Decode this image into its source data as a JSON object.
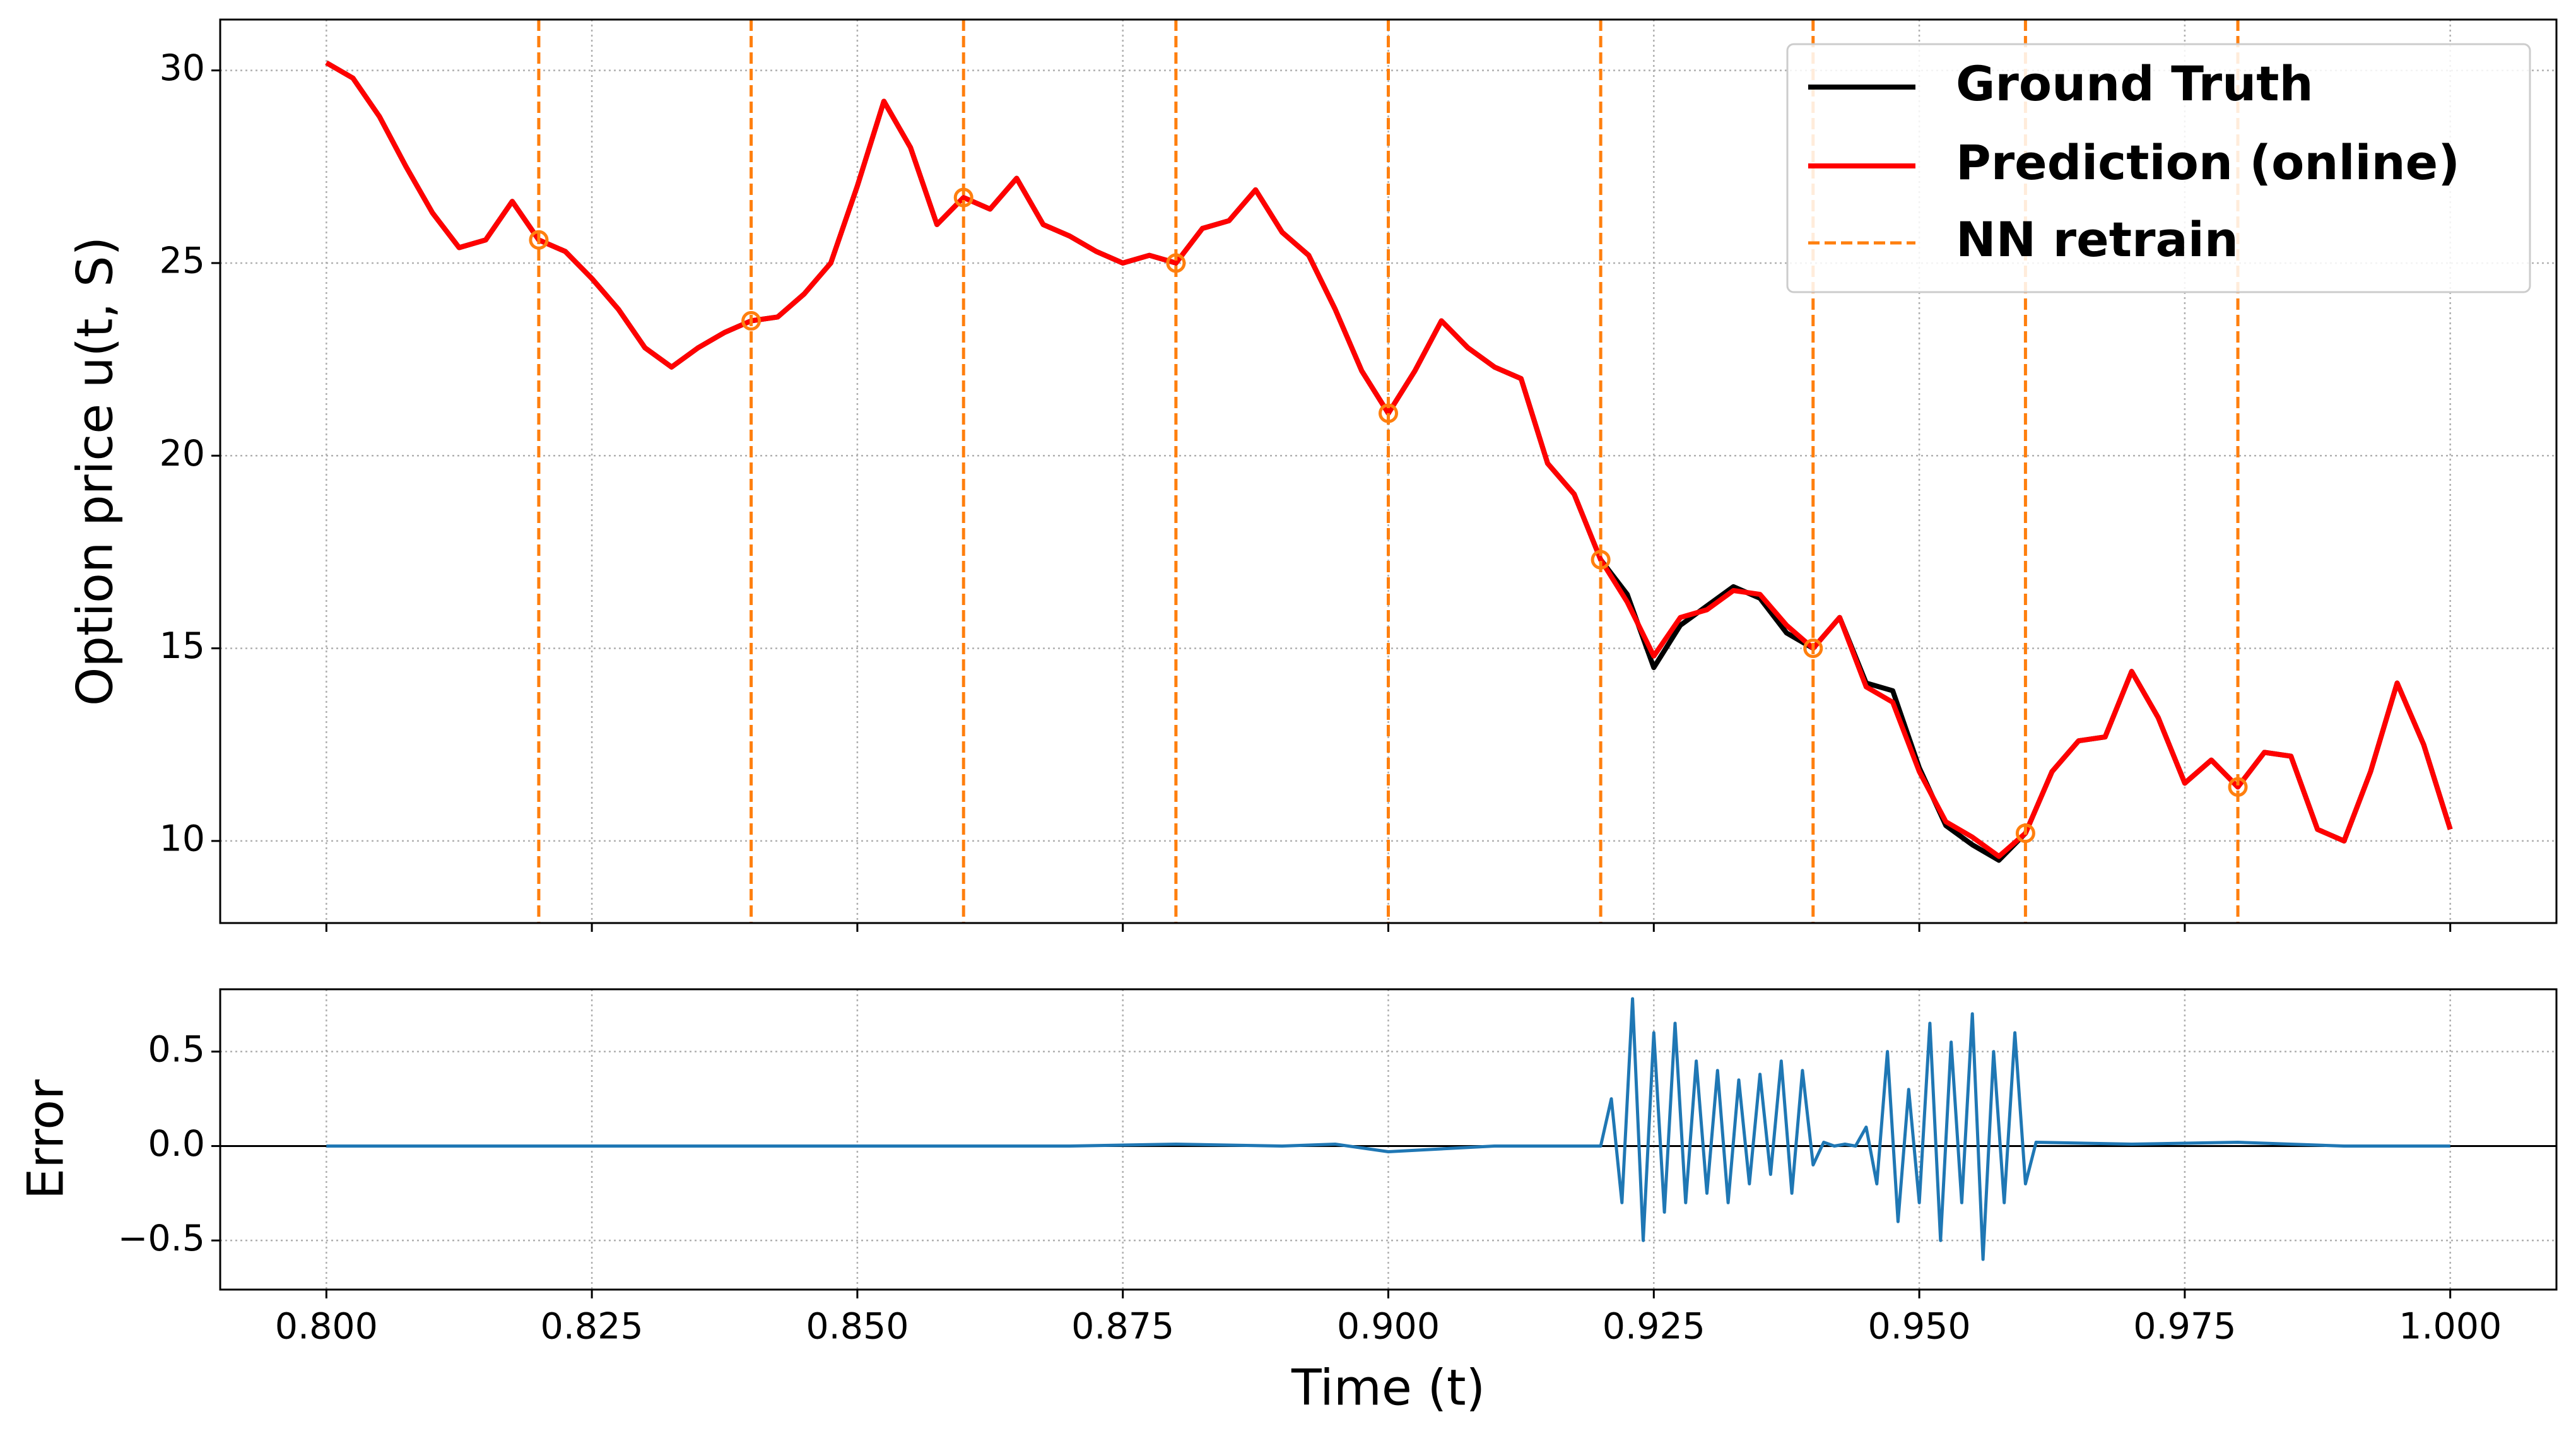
{
  "chart_data": [
    {
      "type": "line",
      "ylabel": "Option price  u(t, S)",
      "xlim": [
        0.79,
        1.01
      ],
      "ylim": [
        7.87,
        31.32
      ],
      "xticks": [
        0.8,
        0.825,
        0.85,
        0.875,
        0.9,
        0.925,
        0.95,
        0.975,
        1.0
      ],
      "yticks": [
        10,
        15,
        20,
        25,
        30
      ],
      "grid": true,
      "legend": "upper right",
      "x": [
        0.8,
        0.8025,
        0.805,
        0.8075,
        0.81,
        0.8125,
        0.815,
        0.8175,
        0.82,
        0.8225,
        0.825,
        0.8275,
        0.83,
        0.8325,
        0.835,
        0.8375,
        0.84,
        0.8425,
        0.845,
        0.8475,
        0.85,
        0.8525,
        0.855,
        0.8575,
        0.86,
        0.8625,
        0.865,
        0.8675,
        0.87,
        0.8725,
        0.875,
        0.8775,
        0.88,
        0.8825,
        0.885,
        0.8875,
        0.89,
        0.8925,
        0.895,
        0.8975,
        0.9,
        0.9025,
        0.905,
        0.9075,
        0.91,
        0.9125,
        0.915,
        0.9175,
        0.92,
        0.9225,
        0.925,
        0.9275,
        0.93,
        0.9325,
        0.935,
        0.9375,
        0.94,
        0.9425,
        0.945,
        0.9475,
        0.95,
        0.9525,
        0.955,
        0.9575,
        0.96,
        0.9625,
        0.965,
        0.9675,
        0.97,
        0.9725,
        0.975,
        0.9775,
        0.98,
        0.9825,
        0.985,
        0.9875,
        0.99,
        0.9925,
        0.995,
        0.9975,
        1.0
      ],
      "series": [
        {
          "name": "Ground Truth",
          "color": "#000000",
          "values": [
            30.2,
            29.8,
            28.8,
            27.5,
            26.3,
            25.4,
            25.6,
            26.6,
            25.6,
            25.3,
            24.6,
            23.8,
            22.8,
            22.3,
            22.8,
            23.2,
            23.5,
            23.6,
            24.2,
            25.0,
            27.0,
            29.2,
            28.0,
            26.0,
            26.7,
            26.4,
            27.2,
            26.0,
            25.7,
            25.3,
            25.0,
            25.2,
            25.0,
            25.9,
            26.1,
            26.9,
            25.8,
            25.2,
            23.8,
            22.2,
            21.1,
            22.2,
            23.5,
            22.8,
            22.3,
            22.0,
            19.8,
            19.0,
            17.3,
            16.4,
            14.5,
            15.6,
            16.1,
            16.6,
            16.3,
            15.4,
            15.0,
            15.8,
            14.1,
            13.9,
            11.9,
            10.4,
            9.9,
            9.5,
            10.2,
            11.8,
            12.6,
            12.7,
            14.4,
            13.2,
            11.5,
            12.1,
            11.4,
            12.3,
            12.2,
            10.3,
            10.0,
            11.8,
            14.1,
            12.5,
            10.3
          ]
        },
        {
          "name": "Prediction (online)",
          "color": "#ff0000",
          "values": [
            30.2,
            29.8,
            28.8,
            27.5,
            26.3,
            25.4,
            25.6,
            26.6,
            25.6,
            25.3,
            24.6,
            23.8,
            22.8,
            22.3,
            22.8,
            23.2,
            23.5,
            23.6,
            24.2,
            25.0,
            27.0,
            29.2,
            28.0,
            26.0,
            26.7,
            26.4,
            27.2,
            26.0,
            25.7,
            25.3,
            25.0,
            25.2,
            25.0,
            25.9,
            26.1,
            26.9,
            25.8,
            25.2,
            23.8,
            22.2,
            21.1,
            22.2,
            23.5,
            22.8,
            22.3,
            22.0,
            19.8,
            19.0,
            17.3,
            16.2,
            14.8,
            15.8,
            16.0,
            16.5,
            16.4,
            15.6,
            15.0,
            15.8,
            14.0,
            13.6,
            11.8,
            10.5,
            10.1,
            9.6,
            10.2,
            11.8,
            12.6,
            12.7,
            14.4,
            13.2,
            11.5,
            12.1,
            11.4,
            12.3,
            12.2,
            10.3,
            10.0,
            11.8,
            14.1,
            12.5,
            10.3
          ]
        }
      ],
      "retrain": {
        "name": "NN retrain",
        "color": "#ff7f0e",
        "x": [
          0.82,
          0.84,
          0.86,
          0.88,
          0.9,
          0.92,
          0.94,
          0.96,
          0.98
        ],
        "marker_values": [
          25.6,
          23.5,
          26.7,
          25.0,
          21.1,
          17.3,
          15.0,
          10.2,
          11.4
        ]
      }
    },
    {
      "type": "line",
      "ylabel": "Error",
      "xlabel": "Time (t)",
      "xlim": [
        0.79,
        1.01
      ],
      "ylim": [
        -0.76,
        0.83
      ],
      "xticks": [
        {
          "value": 0.8,
          "label": "0.800"
        },
        {
          "value": 0.825,
          "label": "0.825"
        },
        {
          "value": 0.85,
          "label": "0.850"
        },
        {
          "value": 0.875,
          "label": "0.875"
        },
        {
          "value": 0.9,
          "label": "0.900"
        },
        {
          "value": 0.925,
          "label": "0.925"
        },
        {
          "value": 0.95,
          "label": "0.950"
        },
        {
          "value": 0.975,
          "label": "0.975"
        },
        {
          "value": 1.0,
          "label": "1.000"
        }
      ],
      "yticks": [
        0.5,
        {
          "value": 0,
          "label": "0.0"
        },
        {
          "value": -0.5,
          "label": "−0.5"
        }
      ],
      "grid": true,
      "baseline": 0,
      "x": [
        0.8,
        0.81,
        0.82,
        0.83,
        0.84,
        0.85,
        0.86,
        0.87,
        0.88,
        0.89,
        0.895,
        0.9,
        0.91,
        0.92,
        0.921,
        0.922,
        0.923,
        0.924,
        0.925,
        0.926,
        0.927,
        0.928,
        0.929,
        0.93,
        0.931,
        0.932,
        0.933,
        0.934,
        0.935,
        0.936,
        0.937,
        0.938,
        0.939,
        0.94,
        0.941,
        0.942,
        0.943,
        0.944,
        0.945,
        0.946,
        0.947,
        0.948,
        0.949,
        0.95,
        0.951,
        0.952,
        0.953,
        0.954,
        0.955,
        0.956,
        0.957,
        0.958,
        0.959,
        0.96,
        0.961,
        0.97,
        0.98,
        0.99,
        1.0
      ],
      "series": [
        {
          "name": "Error",
          "color": "#1f77b4",
          "values": [
            0,
            0,
            0,
            0,
            0,
            0,
            0,
            0,
            0.01,
            0,
            0.01,
            -0.03,
            0,
            0,
            0.25,
            -0.3,
            0.78,
            -0.5,
            0.6,
            -0.35,
            0.65,
            -0.3,
            0.45,
            -0.25,
            0.4,
            -0.3,
            0.35,
            -0.2,
            0.38,
            -0.15,
            0.45,
            -0.25,
            0.4,
            -0.1,
            0.02,
            0,
            0.01,
            0,
            0.1,
            -0.2,
            0.5,
            -0.4,
            0.3,
            -0.3,
            0.65,
            -0.5,
            0.55,
            -0.3,
            0.7,
            -0.6,
            0.5,
            -0.3,
            0.6,
            -0.2,
            0.02,
            0.01,
            0.02,
            0,
            0
          ]
        }
      ]
    }
  ]
}
